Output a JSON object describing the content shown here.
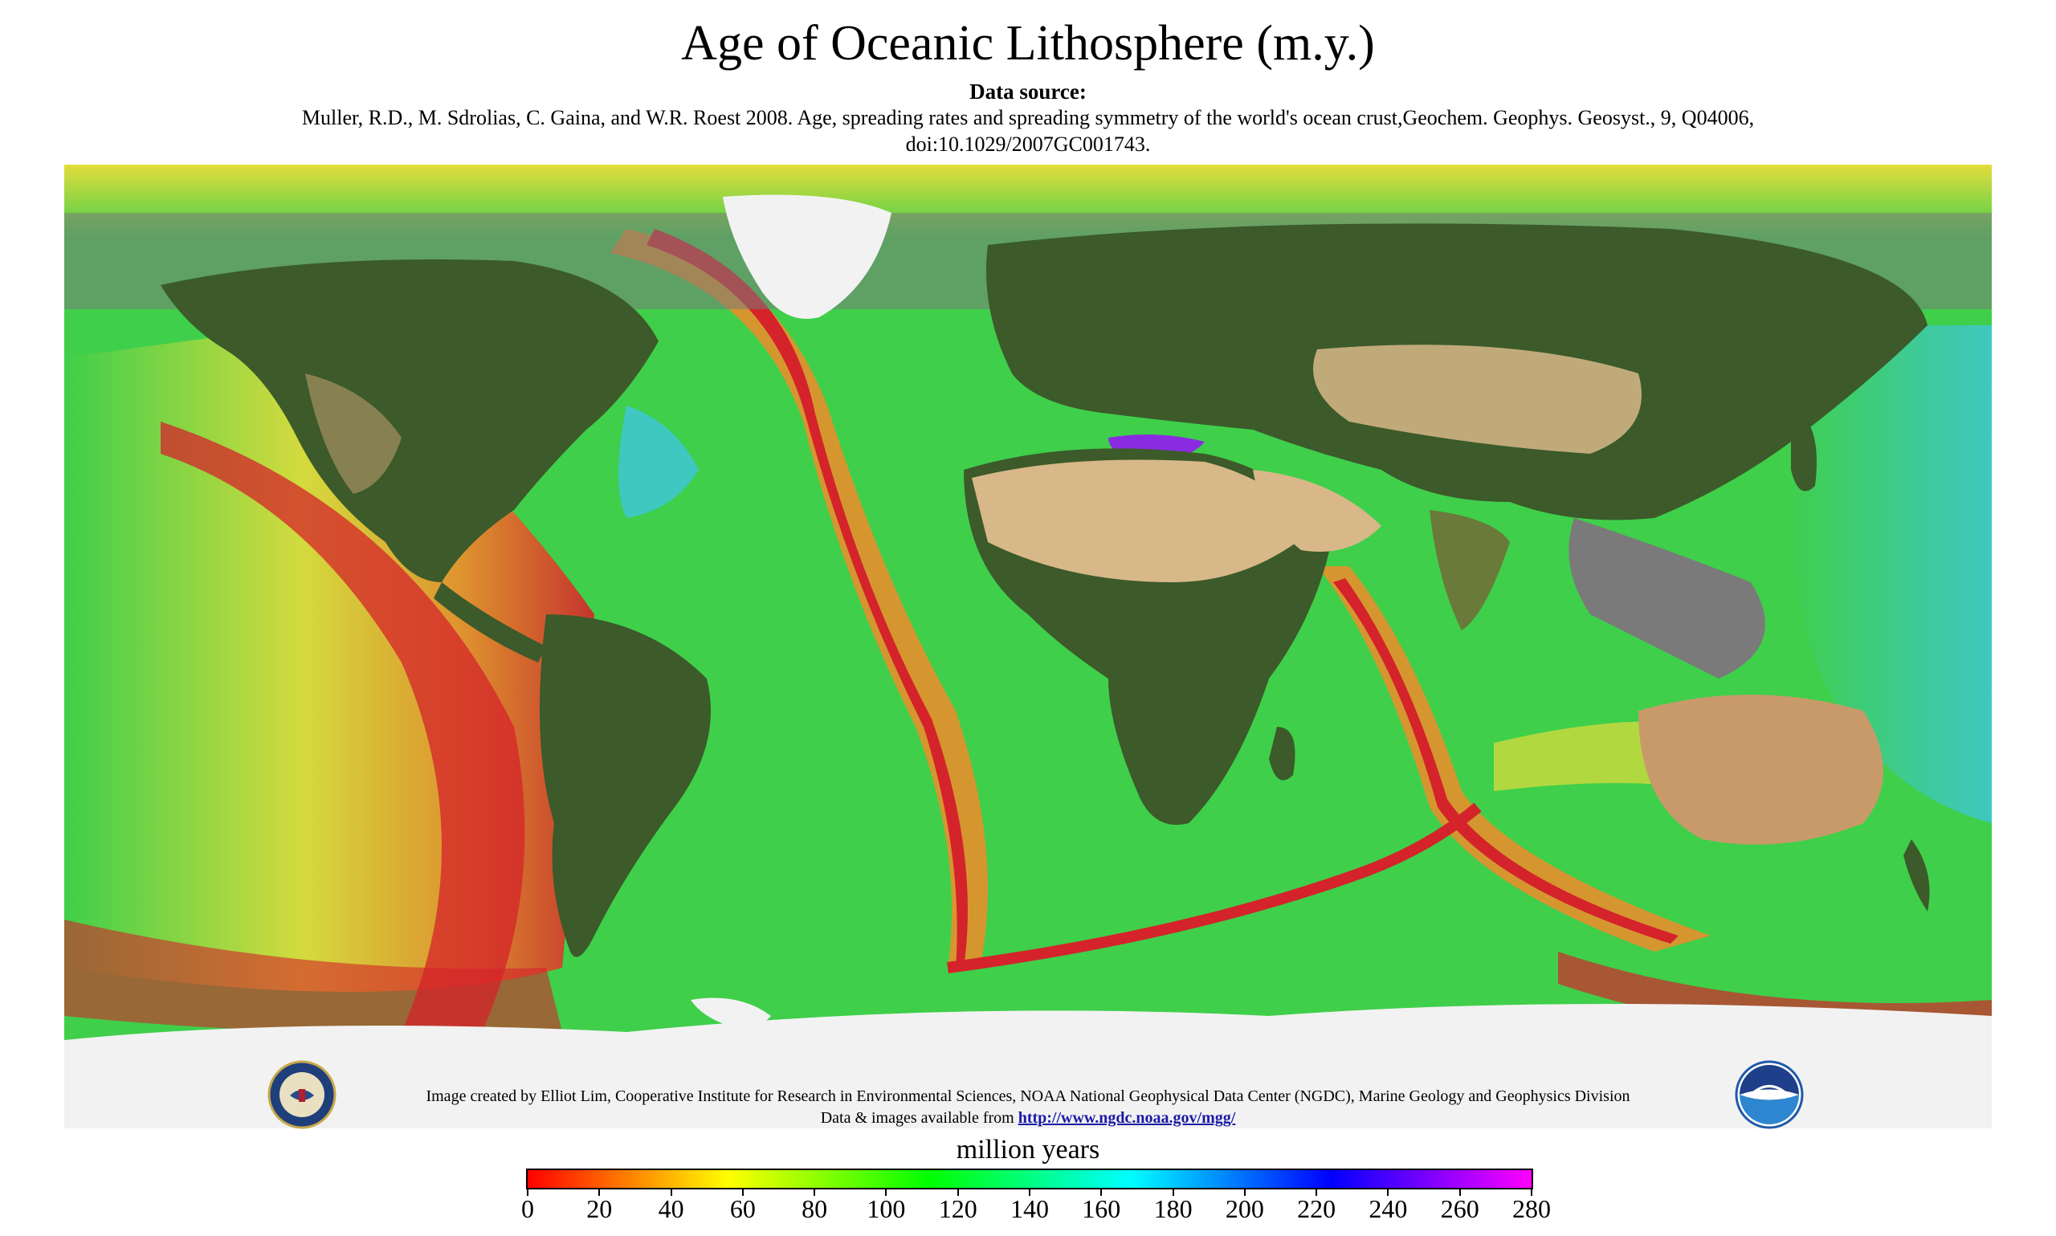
{
  "title": "Age of Oceanic Lithosphere (m.y.)",
  "data_source_heading": "Data source:",
  "citation_line1": "Muller, R.D., M. Sdrolias, C. Gaina, and W.R. Roest 2008. Age, spreading rates and spreading symmetry of the world's ocean crust,Geochem. Geophys. Geosyst., 9, Q04006,",
  "citation_line2": "doi:10.1029/2007GC001743.",
  "credit_line1": "Image created by Elliot Lim, Cooperative Institute for Research in Environmental Sciences,  NOAA National Geophysical Data Center (NGDC), Marine Geology and Geophysics Division",
  "credit_line2_prefix": "Data & images available from",
  "credit_link": "http://www.ngdc.noaa.gov/mgg/",
  "noaa_logo_text": "NOAA",
  "colorbar": {
    "label": "million years",
    "min": 0,
    "max": 280,
    "ticks": [
      "0",
      "20",
      "40",
      "60",
      "80",
      "100",
      "120",
      "140",
      "160",
      "180",
      "200",
      "220",
      "240",
      "260",
      "280"
    ],
    "colors": [
      "#ff0000",
      "#ff8000",
      "#ffff00",
      "#80ff00",
      "#00ff00",
      "#00ff80",
      "#00ffff",
      "#0080ff",
      "#0000ff",
      "#8000ff",
      "#ff00ff"
    ]
  },
  "map_colors": {
    "young_ridge": "#d4232a",
    "orange": "#f08c2c",
    "yellow": "#e4dc3c",
    "green": "#3fcf4a",
    "cyan_old": "#3ec8c0",
    "land_green": "#3c5a2a",
    "desert": "#d8b888",
    "ice": "#f2f2f2",
    "shelf_gray": "#7a7a7a",
    "mediterranean_purple": "#8a2be2"
  }
}
